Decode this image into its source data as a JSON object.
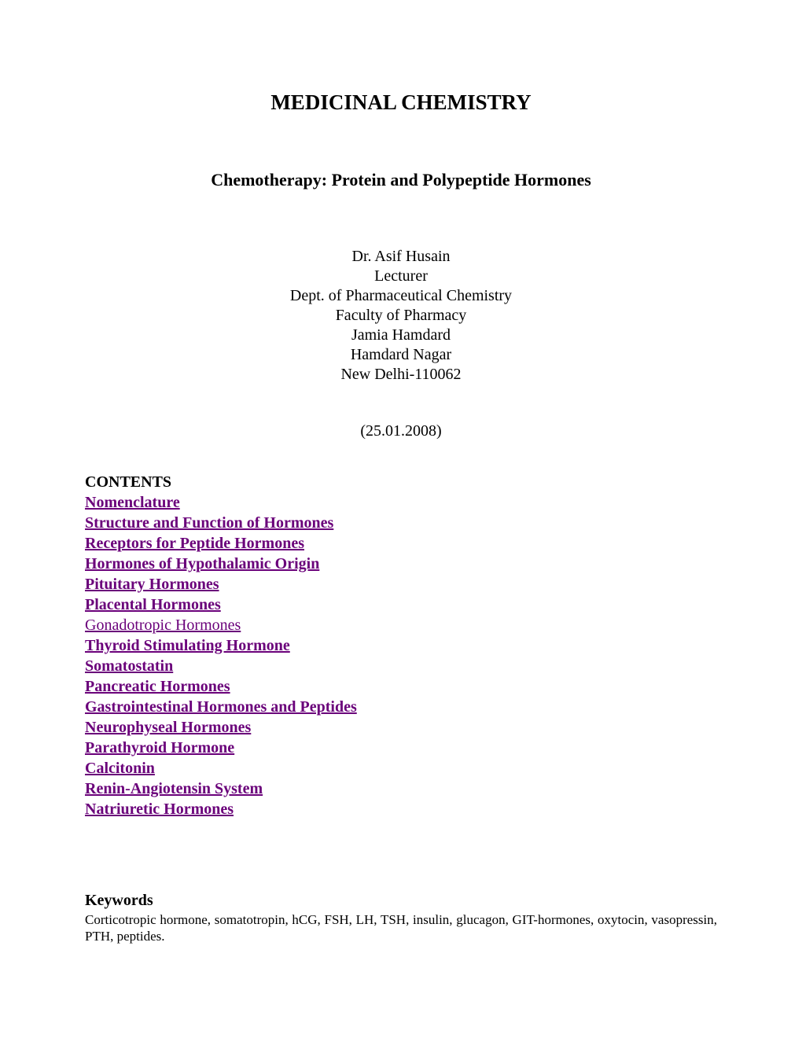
{
  "colors": {
    "page_background": "#ffffff",
    "text": "#000000",
    "link": "#6a007a"
  },
  "typography": {
    "font_family": "Times New Roman",
    "title_fontsize_pt": 20,
    "subtitle_fontsize_pt": 16,
    "body_fontsize_pt": 15,
    "keywords_body_fontsize_pt": 13
  },
  "title": "MEDICINAL CHEMISTRY",
  "subtitle": "Chemotherapy: Protein and Polypeptide Hormones",
  "author": {
    "name": "Dr. Asif Husain",
    "role": "Lecturer",
    "dept": "Dept. of Pharmaceutical Chemistry",
    "faculty": "Faculty of Pharmacy",
    "institution": "Jamia Hamdard",
    "locality": "Hamdard Nagar",
    "city_pin": "New Delhi-110062"
  },
  "date": "(25.01.2008)",
  "contents": {
    "heading": "CONTENTS",
    "items": [
      {
        "label": "Nomenclature",
        "bold": true
      },
      {
        "label": "Structure and Function of Hormones",
        "bold": true
      },
      {
        "label": "Receptors for Peptide Hormones",
        "bold": true
      },
      {
        "label": "Hormones of Hypothalamic Origin",
        "bold": true
      },
      {
        "label": "Pituitary Hormones",
        "bold": true
      },
      {
        "label": "Placental Hormones",
        "bold": true
      },
      {
        "label": "Gonadotropic Hormones",
        "bold": false
      },
      {
        "label": "Thyroid Stimulating Hormone",
        "bold": true
      },
      {
        "label": "Somatostatin",
        "bold": true
      },
      {
        "label": "Pancreatic Hormones",
        "bold": true
      },
      {
        "label": "Gastrointestinal Hormones and Peptides",
        "bold": true
      },
      {
        "label": "Neurophyseal Hormones",
        "bold": true
      },
      {
        "label": "Parathyroid Hormone",
        "bold": true
      },
      {
        "label": "Calcitonin",
        "bold": true
      },
      {
        "label": "Renin-Angiotensin System",
        "bold": true
      },
      {
        "label": "Natriuretic Hormones",
        "bold": true
      }
    ]
  },
  "keywords": {
    "heading": "Keywords",
    "body": "Corticotropic hormone, somatotropin, hCG, FSH, LH, TSH, insulin, glucagon, GIT-hormones, oxytocin, vasopressin, PTH, peptides."
  }
}
